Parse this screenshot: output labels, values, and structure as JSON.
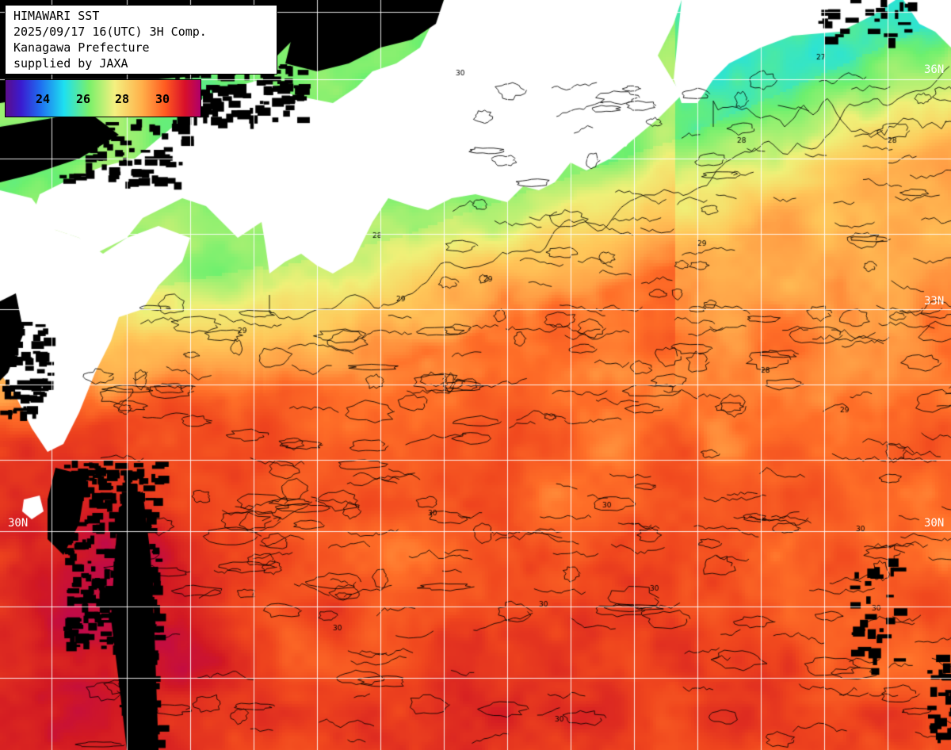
{
  "header": {
    "line1": "HIMAWARI SST",
    "line2": "2025/09/17 16(UTC) 3H Comp.",
    "line3": "Kanagawa Prefecture",
    "line4": "supplied by JAXA"
  },
  "legend": {
    "ticks": [
      "24",
      "26",
      "28",
      "30"
    ]
  },
  "latitude_labels": {
    "lat36": "36N",
    "lat33": "33N",
    "lat30_right": "30N",
    "lat30_left": "30N"
  },
  "contour_labels": [
    "27",
    "28",
    "29",
    "30"
  ],
  "colors": {
    "land": "#ffffff",
    "cloud": "#000000",
    "grid": "#ffffff",
    "sst_24": "#1f6ff0",
    "sst_26": "#1ee0f0",
    "sst_28": "#f4f080",
    "sst_30": "#ff5a20",
    "sst_31": "#d8102a"
  }
}
